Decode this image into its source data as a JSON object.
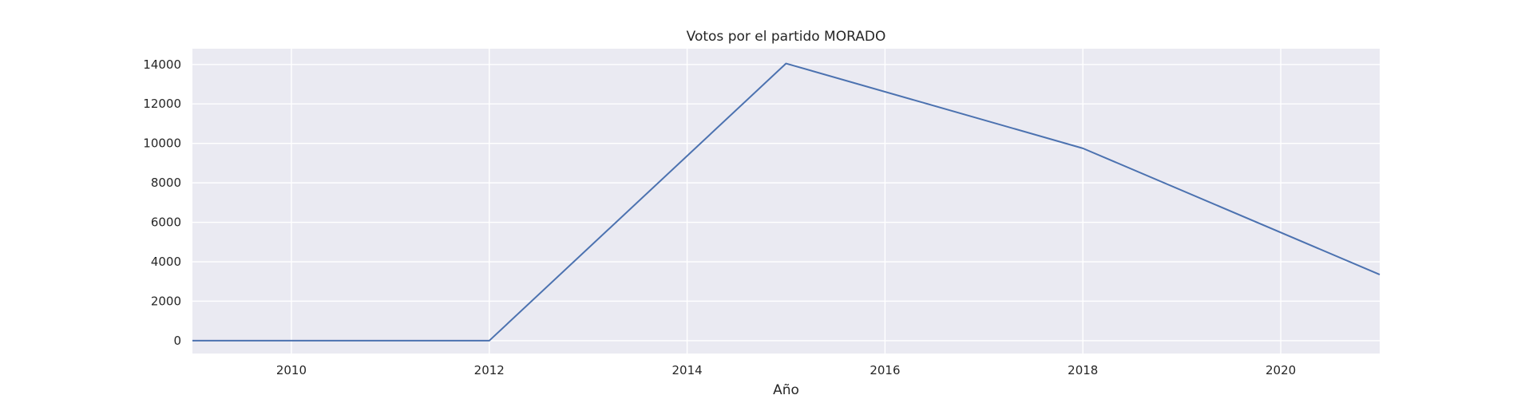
{
  "chart_data": {
    "type": "line",
    "title": "Votos por el partido MORADO",
    "xlabel": "Año",
    "ylabel": "",
    "xlim": [
      2009,
      2021
    ],
    "ylim": [
      -650,
      14800
    ],
    "x_ticks": [
      2010,
      2012,
      2014,
      2016,
      2018,
      2020
    ],
    "y_ticks": [
      0,
      2000,
      4000,
      6000,
      8000,
      10000,
      12000,
      14000
    ],
    "grid": true,
    "legend": "none",
    "series": [
      {
        "color": "#4c72b0",
        "x": [
          2009,
          2012,
          2015,
          2018,
          2021
        ],
        "y": [
          0,
          0,
          14050,
          9750,
          3350
        ]
      }
    ],
    "colors": {
      "plot_background": "#eaeaf2",
      "grid": "#ffffff",
      "text": "#262626"
    }
  }
}
